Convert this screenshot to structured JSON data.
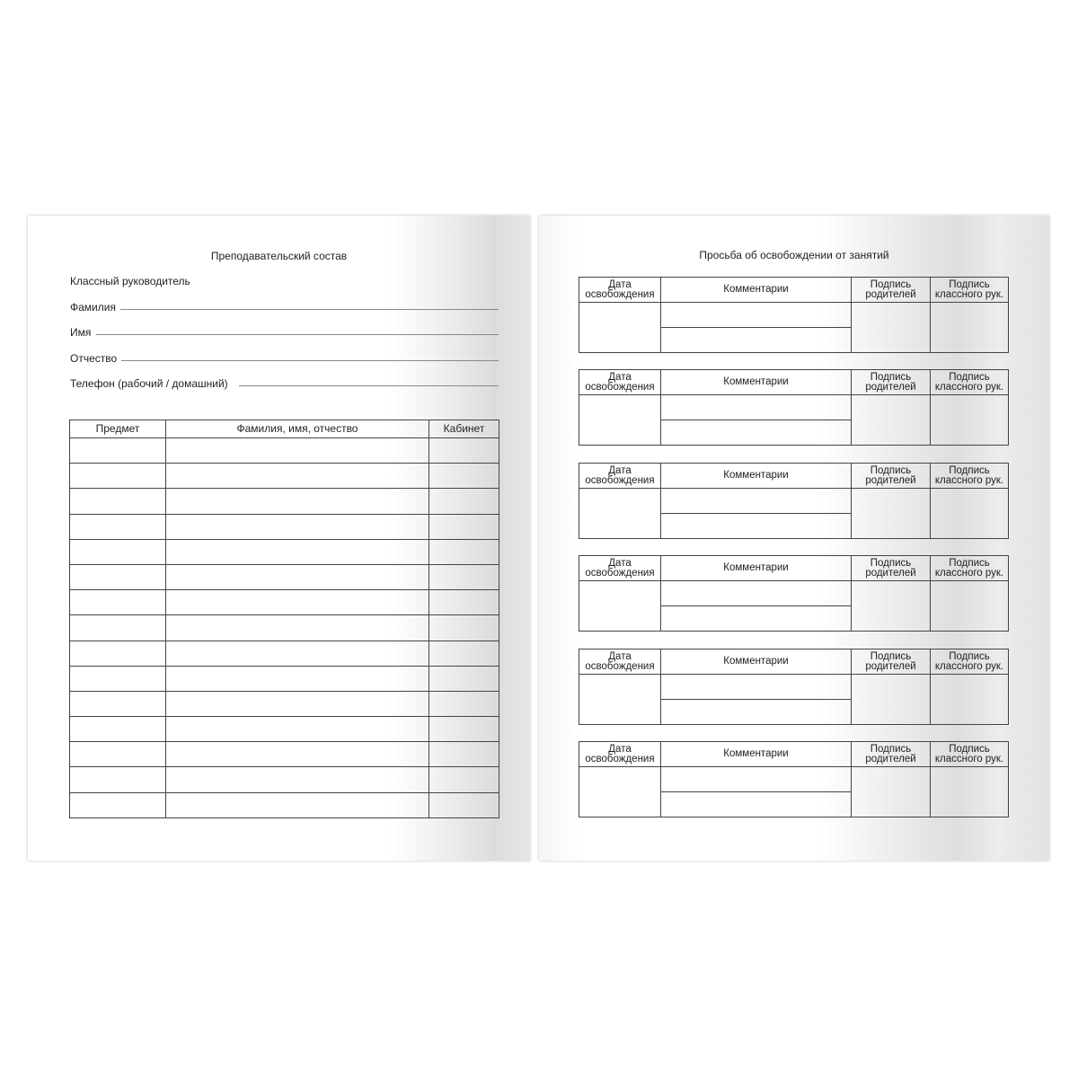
{
  "left_page": {
    "title": "Преподавательский состав",
    "class_teacher": "Классный руководитель",
    "fields": [
      "Фамилия",
      "Имя",
      "Отчество",
      "Телефон (рабочий / домашний)"
    ],
    "table": {
      "headers": [
        "Предмет",
        "Фамилия, имя, отчество",
        "Кабинет"
      ],
      "empty_rows": 15
    }
  },
  "right_page": {
    "title": "Просьба об освобождении от занятий",
    "block_count": 6,
    "headers": {
      "date": [
        "Дата",
        "освобождения"
      ],
      "comments": "Комментарии",
      "parents": [
        "Подпись",
        "родителей"
      ],
      "teacher": [
        "Подпись",
        "классного рук."
      ]
    }
  }
}
